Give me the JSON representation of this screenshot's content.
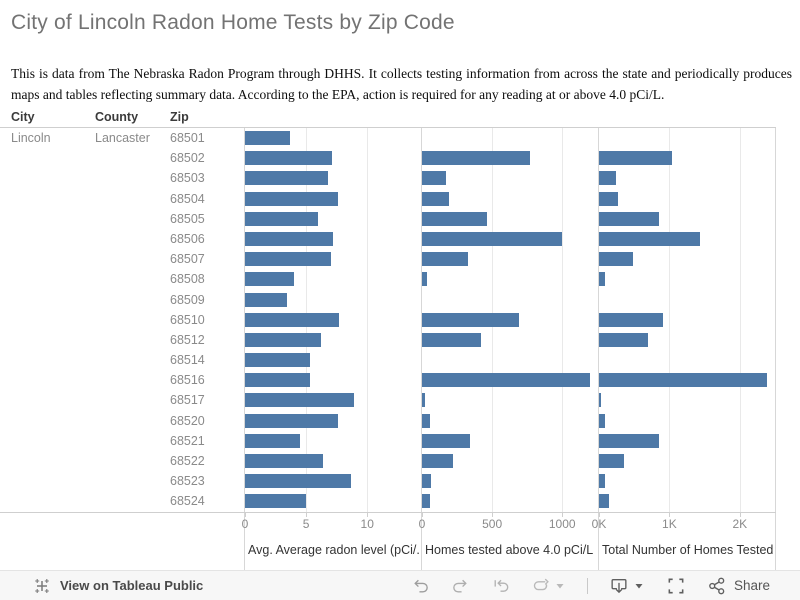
{
  "page": {
    "title": "City of Lincoln Radon Home Tests by Zip Code",
    "description": "This is data from The Nebraska Radon Program through DHHS.  It collects testing information from across the state and periodically produces maps and tables reflecting summary data.  According to the EPA, action is required for any reading at or above 4.0 pCi/L."
  },
  "columns": {
    "city": "City",
    "county": "County",
    "zip": "Zip"
  },
  "chart_data": {
    "type": "bar",
    "orientation": "horizontal",
    "bar_color": "#4e79a7",
    "grid": true,
    "city": "Lincoln",
    "county": "Lancaster",
    "categories": [
      "68501",
      "68502",
      "68503",
      "68504",
      "68505",
      "68506",
      "68507",
      "68508",
      "68509",
      "68510",
      "68512",
      "68514",
      "68516",
      "68517",
      "68520",
      "68521",
      "68522",
      "68523",
      "68524"
    ],
    "series": [
      {
        "name": "Avg. Average radon level (pCi/..",
        "xlim": [
          0,
          14.4
        ],
        "ticks": [
          {
            "label": "0",
            "value": 0
          },
          {
            "label": "5",
            "value": 5
          },
          {
            "label": "10",
            "value": 10
          }
        ],
        "values": [
          3.7,
          7.1,
          6.8,
          7.6,
          6.0,
          7.2,
          7.0,
          4.0,
          3.4,
          7.7,
          6.2,
          5.3,
          5.3,
          8.9,
          7.6,
          4.5,
          6.4,
          8.7,
          5.0
        ]
      },
      {
        "name": "Homes tested above 4.0 pCi/L",
        "xlim": [
          0,
          1255
        ],
        "ticks": [
          {
            "label": "0",
            "value": 0
          },
          {
            "label": "500",
            "value": 500
          },
          {
            "label": "1000",
            "value": 1000
          }
        ],
        "values": [
          0,
          770,
          170,
          190,
          460,
          1000,
          325,
          35,
          0,
          690,
          420,
          0,
          1200,
          20,
          55,
          340,
          220,
          65,
          55
        ]
      },
      {
        "name": "Total Number of Homes Tested",
        "xlim": [
          0,
          2500
        ],
        "ticks": [
          {
            "label": "0K",
            "value": 0
          },
          {
            "label": "1K",
            "value": 1000
          },
          {
            "label": "2K",
            "value": 2000
          }
        ],
        "values": [
          0,
          1040,
          240,
          265,
          850,
          1435,
          485,
          85,
          0,
          905,
          695,
          0,
          2380,
          30,
          80,
          850,
          350,
          85,
          135
        ]
      }
    ]
  },
  "toolbar": {
    "view_on_tableau": "View on Tableau Public",
    "share": "Share"
  }
}
